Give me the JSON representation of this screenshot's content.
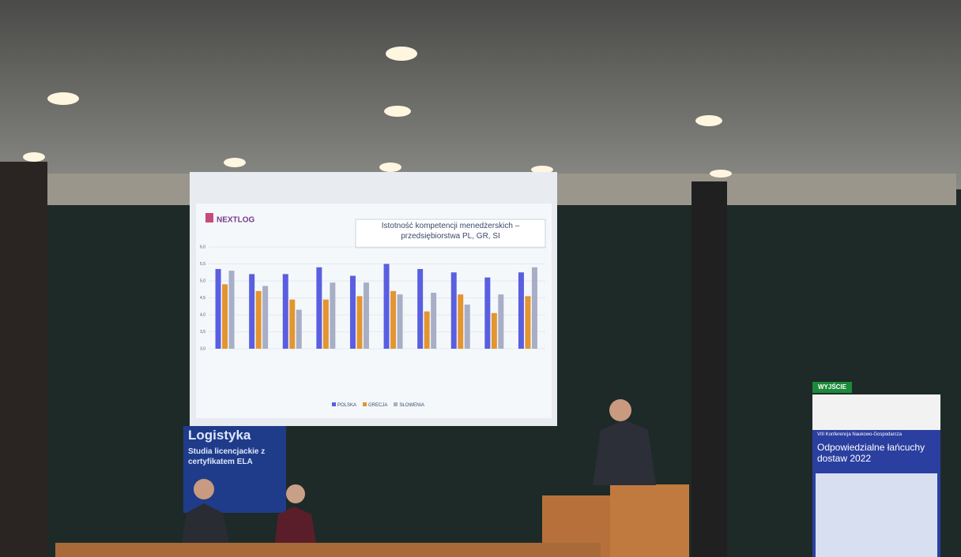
{
  "slide": {
    "logo": "NEXTLOG",
    "chart_data": {
      "type": "bar",
      "title": "Istotność kompetencji menedżerskich – przedsiębiorstwa PL, GR, SI",
      "categories": [
        null,
        null,
        null,
        null,
        null,
        null,
        null,
        null,
        null,
        null
      ],
      "series": [
        {
          "name": "POLSKA",
          "color": "#5a5ee0",
          "values": [
            5.35,
            5.2,
            5.2,
            5.4,
            5.15,
            5.5,
            5.35,
            5.25,
            5.1,
            5.25
          ]
        },
        {
          "name": "GRECJA",
          "color": "#e39530",
          "values": [
            4.9,
            4.7,
            4.45,
            4.45,
            4.55,
            4.7,
            4.1,
            4.6,
            4.05,
            4.55
          ]
        },
        {
          "name": "SŁOWENIA",
          "color": "#a8aec6",
          "values": [
            5.3,
            4.85,
            4.15,
            4.95,
            4.95,
            4.6,
            4.65,
            4.3,
            4.6,
            5.4
          ]
        }
      ],
      "ylim": [
        3,
        6
      ],
      "yticks": [
        {
          "value": 3,
          "label": "3,0"
        },
        {
          "value": 3.5,
          "label": "3,5"
        },
        {
          "value": 4,
          "label": "4,0"
        },
        {
          "value": 4.5,
          "label": "4,5"
        },
        {
          "value": 5,
          "label": "5,0"
        },
        {
          "value": 5.5,
          "label": "5,5"
        },
        {
          "value": 6,
          "label": "6,0"
        }
      ],
      "grid": true,
      "legend": "bottom"
    }
  },
  "banner_left": {
    "title": "Logistyka",
    "subtitle": "Studia licencjackie z certyfikatem ELA"
  },
  "banner_right": {
    "event": "VIII Konferencja Naukowo-Gospodarcza",
    "title": "Odpowiedzialne łańcuchy dostaw 2022"
  },
  "exit_sign": "WYJŚCIE"
}
